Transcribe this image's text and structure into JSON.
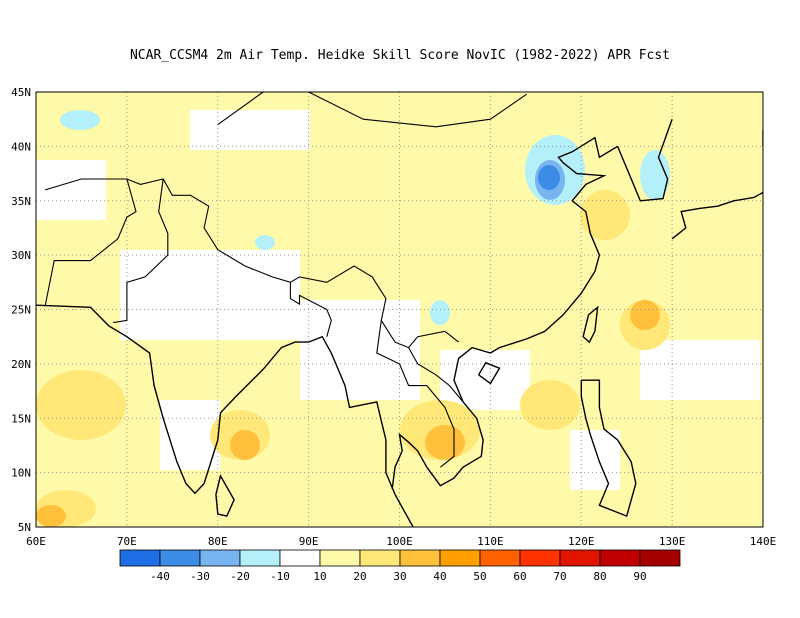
{
  "title": "NCAR_CCSM4  2m Air Temp. Heidke Skill Score NovIC (1982-2022) APR Fcst",
  "map": {
    "lon_range": [
      60,
      140
    ],
    "lat_range": [
      5,
      45
    ],
    "grid": "dotted",
    "lon_ticks": [
      "60E",
      "70E",
      "80E",
      "90E",
      "100E",
      "110E",
      "120E",
      "130E",
      "140E"
    ],
    "lat_ticks": [
      "5N",
      "10N",
      "15N",
      "20N",
      "25N",
      "30N",
      "35N",
      "40N",
      "45N"
    ]
  },
  "colorbar": {
    "labels": [
      "-40",
      "-30",
      "-20",
      "-10",
      "10",
      "20",
      "30",
      "40",
      "50",
      "60",
      "70",
      "80",
      "90"
    ],
    "colors": [
      "#1e6ee6",
      "#3c8ce6",
      "#78b4f0",
      "#b4f0fa",
      "#ffffff",
      "#fffaaa",
      "#ffe878",
      "#ffc03c",
      "#ffa000",
      "#ff6000",
      "#ff3200",
      "#e11400",
      "#c00000",
      "#a50000"
    ]
  },
  "colors": {
    "light_yellow": "#fffaaa",
    "yellow": "#ffe878",
    "orange": "#ffc03c",
    "light_blue": "#b4f0fa",
    "mid_blue": "#78b4f0",
    "blue": "#3c8ce6",
    "coast": "#000000"
  }
}
